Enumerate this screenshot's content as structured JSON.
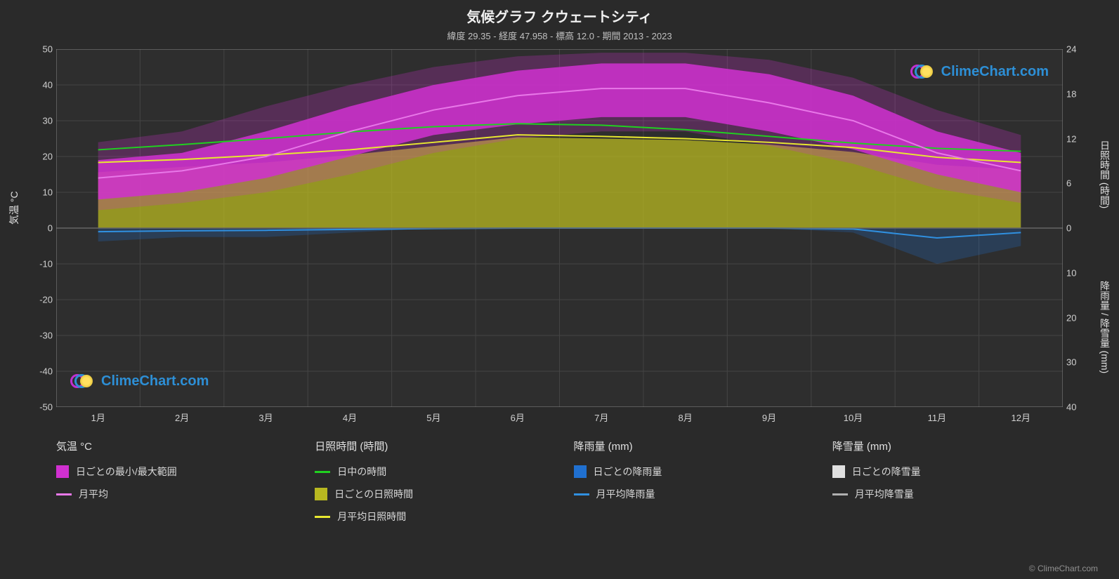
{
  "title": "気候グラフ クウェートシティ",
  "subtitle": "緯度 29.35 - 経度 47.958 - 標高 12.0 - 期間 2013 - 2023",
  "watermark_text": "ClimeChart.com",
  "copyright": "© ClimeChart.com",
  "chart": {
    "background_color": "#2a2a2a",
    "plot_background": "#2e2e2e",
    "grid_color": "#444444",
    "border_color": "#888888",
    "x": {
      "categories": [
        "1月",
        "2月",
        "3月",
        "4月",
        "5月",
        "6月",
        "7月",
        "8月",
        "9月",
        "10月",
        "11月",
        "12月"
      ]
    },
    "y_left": {
      "label": "気温 °C",
      "min": -50,
      "max": 50,
      "step": 10,
      "ticks": [
        -50,
        -40,
        -30,
        -20,
        -10,
        0,
        10,
        20,
        30,
        40,
        50
      ]
    },
    "y_right_top": {
      "label": "日照時間 (時間)",
      "min": 0,
      "max": 24,
      "step": 6,
      "ticks": [
        0,
        6,
        12,
        18,
        24
      ]
    },
    "y_right_bottom": {
      "label": "降雨量 / 降雪量 (mm)",
      "min": 0,
      "max": 40,
      "step": 10,
      "ticks": [
        0,
        10,
        20,
        30,
        40
      ]
    },
    "series": {
      "temp_range_fill": {
        "color": "#d030d0",
        "opacity_core": 0.85,
        "opacity_fuzz": 0.25,
        "upper": [
          19,
          21,
          27,
          34,
          40,
          44,
          46,
          46,
          43,
          37,
          27,
          21
        ],
        "lower": [
          8,
          10,
          14,
          20,
          26,
          29,
          31,
          31,
          27,
          22,
          15,
          10
        ],
        "fuzz_upper": [
          24,
          27,
          34,
          40,
          45,
          48,
          49,
          49,
          47,
          42,
          33,
          26
        ],
        "fuzz_lower": [
          5,
          7,
          10,
          15,
          21,
          25,
          27,
          27,
          23,
          18,
          11,
          7
        ]
      },
      "temp_avg_line": {
        "color": "#e878e8",
        "width": 2,
        "values": [
          14,
          16,
          20,
          27,
          33,
          37,
          39,
          39,
          35,
          30,
          21,
          16
        ]
      },
      "daylight_line": {
        "color": "#20d020",
        "width": 2,
        "values": [
          10.5,
          11.2,
          12.0,
          12.9,
          13.6,
          14.0,
          13.8,
          13.2,
          12.3,
          11.4,
          10.7,
          10.3
        ]
      },
      "sunshine_fill": {
        "color": "#b8b820",
        "opacity": 0.75,
        "values": [
          7.5,
          8.2,
          8.8,
          9.8,
          11.0,
          12.2,
          12.0,
          11.8,
          11.2,
          10.2,
          8.5,
          7.8
        ]
      },
      "sunshine_avg_line": {
        "color": "#e8e830",
        "width": 2,
        "values": [
          8.8,
          9.2,
          9.8,
          10.5,
          11.5,
          12.5,
          12.3,
          12.0,
          11.5,
          10.8,
          9.5,
          8.8
        ]
      },
      "rain_daily_fill": {
        "color": "#2070d0",
        "opacity": 0.25,
        "values": [
          3,
          2,
          2,
          1,
          0,
          0,
          0,
          0,
          0,
          1,
          8,
          4
        ]
      },
      "rain_avg_line": {
        "color": "#3090e0",
        "width": 2,
        "values": [
          0.8,
          0.6,
          0.5,
          0.3,
          0.1,
          0.0,
          0.0,
          0.0,
          0.0,
          0.2,
          2.2,
          1.0
        ]
      },
      "snow_daily_fill": {
        "color": "#e0e0e0",
        "opacity": 0.0,
        "values": [
          0,
          0,
          0,
          0,
          0,
          0,
          0,
          0,
          0,
          0,
          0,
          0
        ]
      },
      "snow_avg_line": {
        "color": "#b0b0b0",
        "width": 2,
        "values": [
          0,
          0,
          0,
          0,
          0,
          0,
          0,
          0,
          0,
          0,
          0,
          0
        ]
      }
    }
  },
  "legend": {
    "columns": [
      {
        "header": "気温 °C",
        "items": [
          {
            "type": "swatch",
            "color": "#d030d0",
            "label": "日ごとの最小/最大範囲"
          },
          {
            "type": "line",
            "color": "#e878e8",
            "label": "月平均"
          }
        ]
      },
      {
        "header": "日照時間 (時間)",
        "items": [
          {
            "type": "line",
            "color": "#20d020",
            "label": "日中の時間"
          },
          {
            "type": "swatch",
            "color": "#b8b820",
            "label": "日ごとの日照時間"
          },
          {
            "type": "line",
            "color": "#e8e830",
            "label": "月平均日照時間"
          }
        ]
      },
      {
        "header": "降雨量 (mm)",
        "items": [
          {
            "type": "swatch",
            "color": "#2070d0",
            "label": "日ごとの降雨量"
          },
          {
            "type": "line",
            "color": "#3090e0",
            "label": "月平均降雨量"
          }
        ]
      },
      {
        "header": "降雪量 (mm)",
        "items": [
          {
            "type": "swatch",
            "color": "#e0e0e0",
            "label": "日ごとの降雪量"
          },
          {
            "type": "line",
            "color": "#b0b0b0",
            "label": "月平均降雪量"
          }
        ]
      }
    ]
  }
}
